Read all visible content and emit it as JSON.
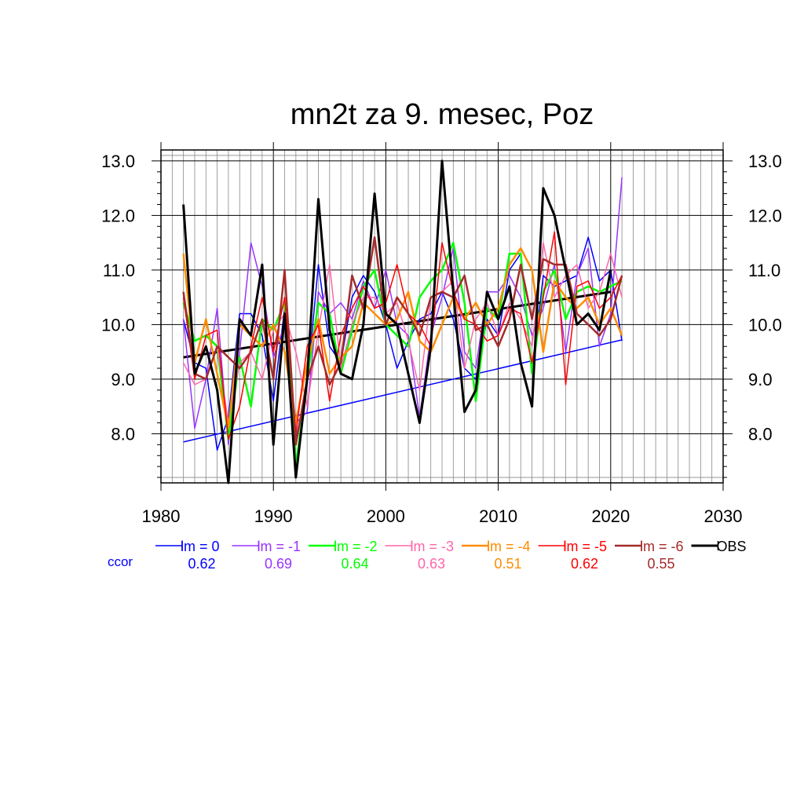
{
  "chart_data": {
    "type": "line",
    "title": "mn2t za 9. mesec, Poz",
    "xlabel": "",
    "ylabel": "",
    "xlim": [
      1980,
      2030
    ],
    "ylim": [
      7.1,
      13.2
    ],
    "x_ticks": [
      1980,
      1990,
      2000,
      2010,
      2020,
      2030
    ],
    "y_ticks": [
      8.0,
      9.0,
      10.0,
      11.0,
      12.0,
      13.0
    ],
    "x_tick_labels": [
      "1980",
      "1990",
      "2000",
      "2010",
      "2020",
      "2030"
    ],
    "y_tick_labels": [
      "8.0",
      "9.0",
      "10.0",
      "11.0",
      "12.0",
      "13.0"
    ],
    "grid": true,
    "legend_position": "bottom",
    "ccor_label": "ccor",
    "ccor_color": "#0000ff",
    "x": [
      1982,
      1983,
      1984,
      1985,
      1986,
      1987,
      1988,
      1989,
      1990,
      1991,
      1992,
      1993,
      1994,
      1995,
      1996,
      1997,
      1998,
      1999,
      2000,
      2001,
      2002,
      2003,
      2004,
      2005,
      2006,
      2007,
      2008,
      2009,
      2010,
      2011,
      2012,
      2013,
      2014,
      2015,
      2016,
      2017,
      2018,
      2019,
      2020,
      2021
    ],
    "series": [
      {
        "name": "lm = 0",
        "ccor": "0.62",
        "color": "#0000ff",
        "width": 1.5,
        "values": [
          10.1,
          9.3,
          9.2,
          7.7,
          8.3,
          10.2,
          10.2,
          9.8,
          8.6,
          10.3,
          7.9,
          8.9,
          11.1,
          9.6,
          9.3,
          10.5,
          10.9,
          10.6,
          10.0,
          9.2,
          9.7,
          10.1,
          10.2,
          10.6,
          10.1,
          9.2,
          9.0,
          10.1,
          9.8,
          11.0,
          11.3,
          9.1,
          10.9,
          10.7,
          10.8,
          10.9,
          11.6,
          10.8,
          11.0,
          9.7
        ]
      },
      {
        "name": "lm = -1",
        "ccor": "0.69",
        "color": "#9933ff",
        "width": 1.5,
        "values": [
          10.1,
          8.1,
          9.0,
          10.3,
          7.8,
          9.5,
          11.5,
          10.7,
          9.4,
          10.0,
          8.2,
          8.4,
          10.6,
          10.2,
          10.4,
          10.1,
          10.8,
          10.3,
          11.0,
          10.0,
          9.8,
          8.3,
          9.8,
          10.5,
          11.4,
          9.5,
          9.2,
          10.6,
          10.6,
          10.9,
          10.5,
          9.8,
          10.3,
          11.1,
          9.5,
          10.9,
          11.4,
          9.6,
          10.2,
          12.7
        ]
      },
      {
        "name": "lm = -2",
        "ccor": "0.64",
        "color": "#00ff00",
        "width": 2.5,
        "values": [
          10.4,
          9.7,
          9.8,
          9.6,
          7.9,
          9.4,
          8.5,
          10.1,
          9.9,
          10.4,
          7.4,
          9.0,
          10.4,
          10.2,
          9.1,
          9.9,
          10.7,
          11.0,
          10.0,
          9.8,
          9.6,
          10.5,
          10.8,
          11.0,
          11.5,
          10.4,
          8.6,
          10.3,
          10.1,
          11.3,
          11.3,
          9.1,
          10.6,
          11.0,
          10.1,
          10.6,
          10.7,
          10.6,
          10.7,
          10.8
        ]
      },
      {
        "name": "lm = -3",
        "ccor": "0.63",
        "color": "#ff66aa",
        "width": 1.5,
        "values": [
          9.3,
          8.9,
          9.0,
          9.6,
          8.2,
          9.3,
          9.5,
          9.0,
          9.9,
          10.2,
          9.5,
          8.5,
          9.9,
          11.1,
          9.2,
          10.0,
          10.5,
          10.5,
          10.2,
          10.4,
          9.7,
          8.8,
          10.5,
          10.6,
          10.8,
          9.2,
          10.1,
          10.4,
          9.8,
          10.4,
          10.1,
          9.6,
          11.5,
          10.5,
          10.9,
          11.1,
          10.3,
          10.6,
          11.3,
          10.5
        ]
      },
      {
        "name": "lm = -4",
        "ccor": "0.51",
        "color": "#ff8c00",
        "width": 2.5,
        "values": [
          11.3,
          9.3,
          10.1,
          9.1,
          8.1,
          10.0,
          9.8,
          9.6,
          10.0,
          9.5,
          8.2,
          9.3,
          10.1,
          9.1,
          9.4,
          9.6,
          10.4,
          10.2,
          10.0,
          10.1,
          10.6,
          9.7,
          9.5,
          10.0,
          10.5,
          10.1,
          10.4,
          10.0,
          10.3,
          11.1,
          11.4,
          11.0,
          9.5,
          10.8,
          10.5,
          10.3,
          10.5,
          10.0,
          10.3,
          9.8
        ]
      },
      {
        "name": "lm = -5",
        "ccor": "0.62",
        "color": "#ff0000",
        "width": 1.5,
        "values": [
          10.5,
          9.0,
          9.8,
          9.9,
          7.9,
          8.5,
          9.6,
          10.5,
          9.5,
          10.5,
          8.0,
          9.6,
          10.0,
          8.6,
          9.8,
          10.3,
          10.7,
          10.3,
          10.4,
          11.1,
          10.2,
          10.0,
          9.6,
          11.5,
          10.6,
          10.1,
          10.0,
          9.7,
          9.8,
          10.3,
          10.2,
          9.3,
          10.5,
          11.7,
          8.9,
          10.7,
          10.8,
          10.3,
          10.5,
          10.9
        ]
      },
      {
        "name": "lm = -6",
        "ccor": "0.55",
        "color": "#a52a2a",
        "width": 2.5,
        "values": [
          10.6,
          9.1,
          9.0,
          9.6,
          9.4,
          9.2,
          9.5,
          10.1,
          9.0,
          11.0,
          7.8,
          9.0,
          9.6,
          8.9,
          9.3,
          10.9,
          10.3,
          11.6,
          10.0,
          10.5,
          10.2,
          9.8,
          10.5,
          10.6,
          10.5,
          10.9,
          9.9,
          10.0,
          9.6,
          10.1,
          11.1,
          10.1,
          11.2,
          11.1,
          11.1,
          10.2,
          10.0,
          9.8,
          10.1,
          10.9
        ]
      },
      {
        "name": "OBS",
        "ccor": "",
        "color": "#000000",
        "width": 3,
        "values": [
          12.2,
          9.1,
          9.6,
          8.8,
          7.1,
          10.1,
          9.8,
          11.1,
          7.8,
          10.2,
          7.2,
          9.0,
          12.3,
          9.9,
          9.1,
          9.0,
          10.0,
          12.4,
          10.2,
          10.0,
          9.1,
          8.2,
          9.6,
          13.0,
          10.6,
          8.4,
          8.8,
          10.6,
          10.1,
          10.7,
          9.3,
          8.5,
          12.5,
          12.0,
          11.0,
          10.0,
          10.2,
          9.9,
          11.0,
          null
        ]
      }
    ],
    "trend_lines": [
      {
        "name": "OBS trend",
        "color": "#000000",
        "width": 3,
        "x": [
          1982,
          2020
        ],
        "y": [
          9.4,
          10.6
        ]
      },
      {
        "name": "lm = 0 trend",
        "color": "#0000ff",
        "width": 1.5,
        "x": [
          1982,
          2021
        ],
        "y": [
          7.85,
          9.72
        ]
      }
    ]
  }
}
